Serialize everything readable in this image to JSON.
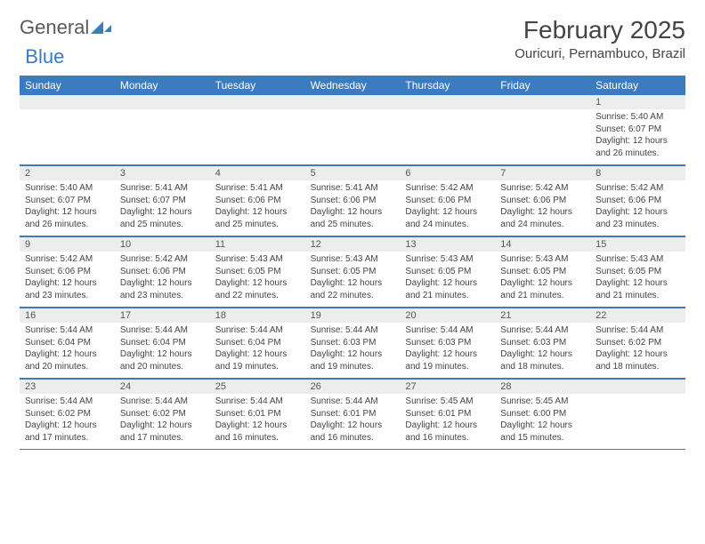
{
  "logo": {
    "part1": "General",
    "part2": "Blue"
  },
  "title": "February 2025",
  "location": "Ouricuri, Pernambuco, Brazil",
  "weekdays": [
    "Sunday",
    "Monday",
    "Tuesday",
    "Wednesday",
    "Thursday",
    "Friday",
    "Saturday"
  ],
  "colors": {
    "header_bar": "#3b7bbf",
    "daynum_bg": "#ededed",
    "text": "#444444"
  },
  "weeks": [
    [
      {
        "n": "",
        "sr": "",
        "ss": "",
        "dl1": "",
        "dl2": ""
      },
      {
        "n": "",
        "sr": "",
        "ss": "",
        "dl1": "",
        "dl2": ""
      },
      {
        "n": "",
        "sr": "",
        "ss": "",
        "dl1": "",
        "dl2": ""
      },
      {
        "n": "",
        "sr": "",
        "ss": "",
        "dl1": "",
        "dl2": ""
      },
      {
        "n": "",
        "sr": "",
        "ss": "",
        "dl1": "",
        "dl2": ""
      },
      {
        "n": "",
        "sr": "",
        "ss": "",
        "dl1": "",
        "dl2": ""
      },
      {
        "n": "1",
        "sr": "Sunrise: 5:40 AM",
        "ss": "Sunset: 6:07 PM",
        "dl1": "Daylight: 12 hours",
        "dl2": "and 26 minutes."
      }
    ],
    [
      {
        "n": "2",
        "sr": "Sunrise: 5:40 AM",
        "ss": "Sunset: 6:07 PM",
        "dl1": "Daylight: 12 hours",
        "dl2": "and 26 minutes."
      },
      {
        "n": "3",
        "sr": "Sunrise: 5:41 AM",
        "ss": "Sunset: 6:07 PM",
        "dl1": "Daylight: 12 hours",
        "dl2": "and 25 minutes."
      },
      {
        "n": "4",
        "sr": "Sunrise: 5:41 AM",
        "ss": "Sunset: 6:06 PM",
        "dl1": "Daylight: 12 hours",
        "dl2": "and 25 minutes."
      },
      {
        "n": "5",
        "sr": "Sunrise: 5:41 AM",
        "ss": "Sunset: 6:06 PM",
        "dl1": "Daylight: 12 hours",
        "dl2": "and 25 minutes."
      },
      {
        "n": "6",
        "sr": "Sunrise: 5:42 AM",
        "ss": "Sunset: 6:06 PM",
        "dl1": "Daylight: 12 hours",
        "dl2": "and 24 minutes."
      },
      {
        "n": "7",
        "sr": "Sunrise: 5:42 AM",
        "ss": "Sunset: 6:06 PM",
        "dl1": "Daylight: 12 hours",
        "dl2": "and 24 minutes."
      },
      {
        "n": "8",
        "sr": "Sunrise: 5:42 AM",
        "ss": "Sunset: 6:06 PM",
        "dl1": "Daylight: 12 hours",
        "dl2": "and 23 minutes."
      }
    ],
    [
      {
        "n": "9",
        "sr": "Sunrise: 5:42 AM",
        "ss": "Sunset: 6:06 PM",
        "dl1": "Daylight: 12 hours",
        "dl2": "and 23 minutes."
      },
      {
        "n": "10",
        "sr": "Sunrise: 5:42 AM",
        "ss": "Sunset: 6:06 PM",
        "dl1": "Daylight: 12 hours",
        "dl2": "and 23 minutes."
      },
      {
        "n": "11",
        "sr": "Sunrise: 5:43 AM",
        "ss": "Sunset: 6:05 PM",
        "dl1": "Daylight: 12 hours",
        "dl2": "and 22 minutes."
      },
      {
        "n": "12",
        "sr": "Sunrise: 5:43 AM",
        "ss": "Sunset: 6:05 PM",
        "dl1": "Daylight: 12 hours",
        "dl2": "and 22 minutes."
      },
      {
        "n": "13",
        "sr": "Sunrise: 5:43 AM",
        "ss": "Sunset: 6:05 PM",
        "dl1": "Daylight: 12 hours",
        "dl2": "and 21 minutes."
      },
      {
        "n": "14",
        "sr": "Sunrise: 5:43 AM",
        "ss": "Sunset: 6:05 PM",
        "dl1": "Daylight: 12 hours",
        "dl2": "and 21 minutes."
      },
      {
        "n": "15",
        "sr": "Sunrise: 5:43 AM",
        "ss": "Sunset: 6:05 PM",
        "dl1": "Daylight: 12 hours",
        "dl2": "and 21 minutes."
      }
    ],
    [
      {
        "n": "16",
        "sr": "Sunrise: 5:44 AM",
        "ss": "Sunset: 6:04 PM",
        "dl1": "Daylight: 12 hours",
        "dl2": "and 20 minutes."
      },
      {
        "n": "17",
        "sr": "Sunrise: 5:44 AM",
        "ss": "Sunset: 6:04 PM",
        "dl1": "Daylight: 12 hours",
        "dl2": "and 20 minutes."
      },
      {
        "n": "18",
        "sr": "Sunrise: 5:44 AM",
        "ss": "Sunset: 6:04 PM",
        "dl1": "Daylight: 12 hours",
        "dl2": "and 19 minutes."
      },
      {
        "n": "19",
        "sr": "Sunrise: 5:44 AM",
        "ss": "Sunset: 6:03 PM",
        "dl1": "Daylight: 12 hours",
        "dl2": "and 19 minutes."
      },
      {
        "n": "20",
        "sr": "Sunrise: 5:44 AM",
        "ss": "Sunset: 6:03 PM",
        "dl1": "Daylight: 12 hours",
        "dl2": "and 19 minutes."
      },
      {
        "n": "21",
        "sr": "Sunrise: 5:44 AM",
        "ss": "Sunset: 6:03 PM",
        "dl1": "Daylight: 12 hours",
        "dl2": "and 18 minutes."
      },
      {
        "n": "22",
        "sr": "Sunrise: 5:44 AM",
        "ss": "Sunset: 6:02 PM",
        "dl1": "Daylight: 12 hours",
        "dl2": "and 18 minutes."
      }
    ],
    [
      {
        "n": "23",
        "sr": "Sunrise: 5:44 AM",
        "ss": "Sunset: 6:02 PM",
        "dl1": "Daylight: 12 hours",
        "dl2": "and 17 minutes."
      },
      {
        "n": "24",
        "sr": "Sunrise: 5:44 AM",
        "ss": "Sunset: 6:02 PM",
        "dl1": "Daylight: 12 hours",
        "dl2": "and 17 minutes."
      },
      {
        "n": "25",
        "sr": "Sunrise: 5:44 AM",
        "ss": "Sunset: 6:01 PM",
        "dl1": "Daylight: 12 hours",
        "dl2": "and 16 minutes."
      },
      {
        "n": "26",
        "sr": "Sunrise: 5:44 AM",
        "ss": "Sunset: 6:01 PM",
        "dl1": "Daylight: 12 hours",
        "dl2": "and 16 minutes."
      },
      {
        "n": "27",
        "sr": "Sunrise: 5:45 AM",
        "ss": "Sunset: 6:01 PM",
        "dl1": "Daylight: 12 hours",
        "dl2": "and 16 minutes."
      },
      {
        "n": "28",
        "sr": "Sunrise: 5:45 AM",
        "ss": "Sunset: 6:00 PM",
        "dl1": "Daylight: 12 hours",
        "dl2": "and 15 minutes."
      },
      {
        "n": "",
        "sr": "",
        "ss": "",
        "dl1": "",
        "dl2": ""
      }
    ]
  ]
}
